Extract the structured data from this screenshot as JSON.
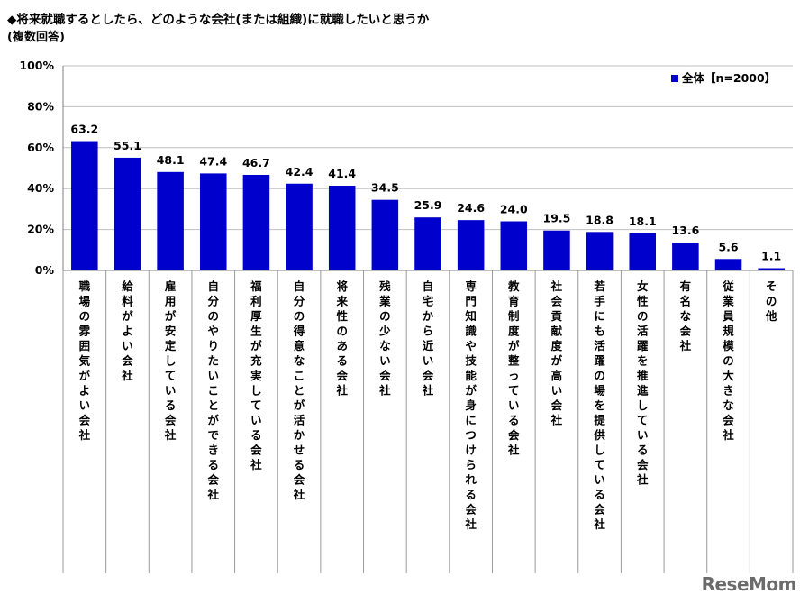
{
  "header": {
    "title": "◆将来就職するとしたら、どのような会社(または組織)に就職したいと思うか",
    "subtitle": "(複数回答)"
  },
  "watermark": "ReseMom",
  "chart_data": {
    "type": "bar",
    "title": "",
    "xlabel": "",
    "ylabel": "",
    "ylim": [
      0,
      100
    ],
    "yticks": [
      "0%",
      "20%",
      "40%",
      "60%",
      "80%",
      "100%"
    ],
    "ytick_values": [
      0,
      20,
      40,
      60,
      80,
      100
    ],
    "grid": true,
    "legend_position": "top-right",
    "bar_color": "#0000cc",
    "categories": [
      "職場の雰囲気がよい会社",
      "給料がよい会社",
      "雇用が安定している会社",
      "自分のやりたいことができる会社",
      "福利厚生が充実している会社",
      "自分の得意なことが活かせる会社",
      "将来性のある会社",
      "残業の少ない会社",
      "自宅から近い会社",
      "専門知識や技能が身につけられる会社",
      "教育制度が整っている会社",
      "社会貢献度が高い会社",
      "若手にも活躍の場を提供している会社",
      "女性の活躍を推進している会社",
      "有名な会社",
      "従業員規模の大きな会社",
      "その他"
    ],
    "series": [
      {
        "name": "全体【n=2000】",
        "values": [
          63.2,
          55.1,
          48.1,
          47.4,
          46.7,
          42.4,
          41.4,
          34.5,
          25.9,
          24.6,
          24.0,
          19.5,
          18.8,
          18.1,
          13.6,
          5.6,
          1.1
        ],
        "labels": [
          "63.2",
          "55.1",
          "48.1",
          "47.4",
          "46.7",
          "42.4",
          "41.4",
          "34.5",
          "25.9",
          "24.6",
          "24.0",
          "19.5",
          "18.8",
          "18.1",
          "13.6",
          "5.6",
          "1.1"
        ]
      }
    ]
  }
}
